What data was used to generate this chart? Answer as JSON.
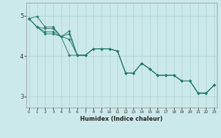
{
  "xlabel": "Humidex (Indice chaleur)",
  "bg_color": "#cce9e9",
  "grid_color": "#aad0d0",
  "line_color": "#2a7a6e",
  "x_ticks": [
    0,
    1,
    2,
    3,
    4,
    5,
    6,
    7,
    8,
    9,
    10,
    11,
    12,
    13,
    14,
    15,
    16,
    17,
    18,
    19,
    20,
    21,
    22,
    23
  ],
  "y_ticks": [
    3,
    4,
    5
  ],
  "ylim": [
    2.72,
    5.32
  ],
  "xlim": [
    -0.3,
    23.3
  ],
  "series": [
    [
      4.93,
      4.98,
      4.72,
      4.72,
      4.48,
      4.62,
      4.02,
      4.02,
      4.18,
      4.18,
      4.18,
      4.12,
      3.58,
      3.58,
      3.82,
      3.68,
      3.52,
      3.52,
      3.52,
      3.38,
      3.38,
      3.08,
      3.08,
      3.28
    ],
    [
      4.93,
      4.72,
      4.55,
      4.55,
      4.48,
      4.42,
      4.02,
      4.02,
      4.18,
      4.18,
      4.18,
      4.12,
      3.58,
      3.58,
      3.82,
      3.68,
      3.52,
      3.52,
      3.52,
      3.38,
      3.38,
      3.08,
      3.08,
      3.28
    ],
    [
      4.93,
      4.72,
      4.6,
      4.6,
      4.48,
      4.55,
      4.02,
      4.02,
      4.18,
      4.18,
      4.18,
      4.12,
      3.58,
      3.58,
      3.82,
      3.68,
      3.52,
      3.52,
      3.52,
      3.38,
      3.38,
      3.08,
      3.08,
      3.28
    ],
    [
      4.93,
      4.72,
      4.68,
      4.68,
      4.48,
      4.02,
      4.02,
      4.02,
      4.18,
      4.18,
      4.18,
      4.12,
      3.58,
      3.58,
      3.82,
      3.68,
      3.52,
      3.52,
      3.52,
      3.38,
      3.38,
      3.08,
      3.08,
      3.28
    ]
  ]
}
